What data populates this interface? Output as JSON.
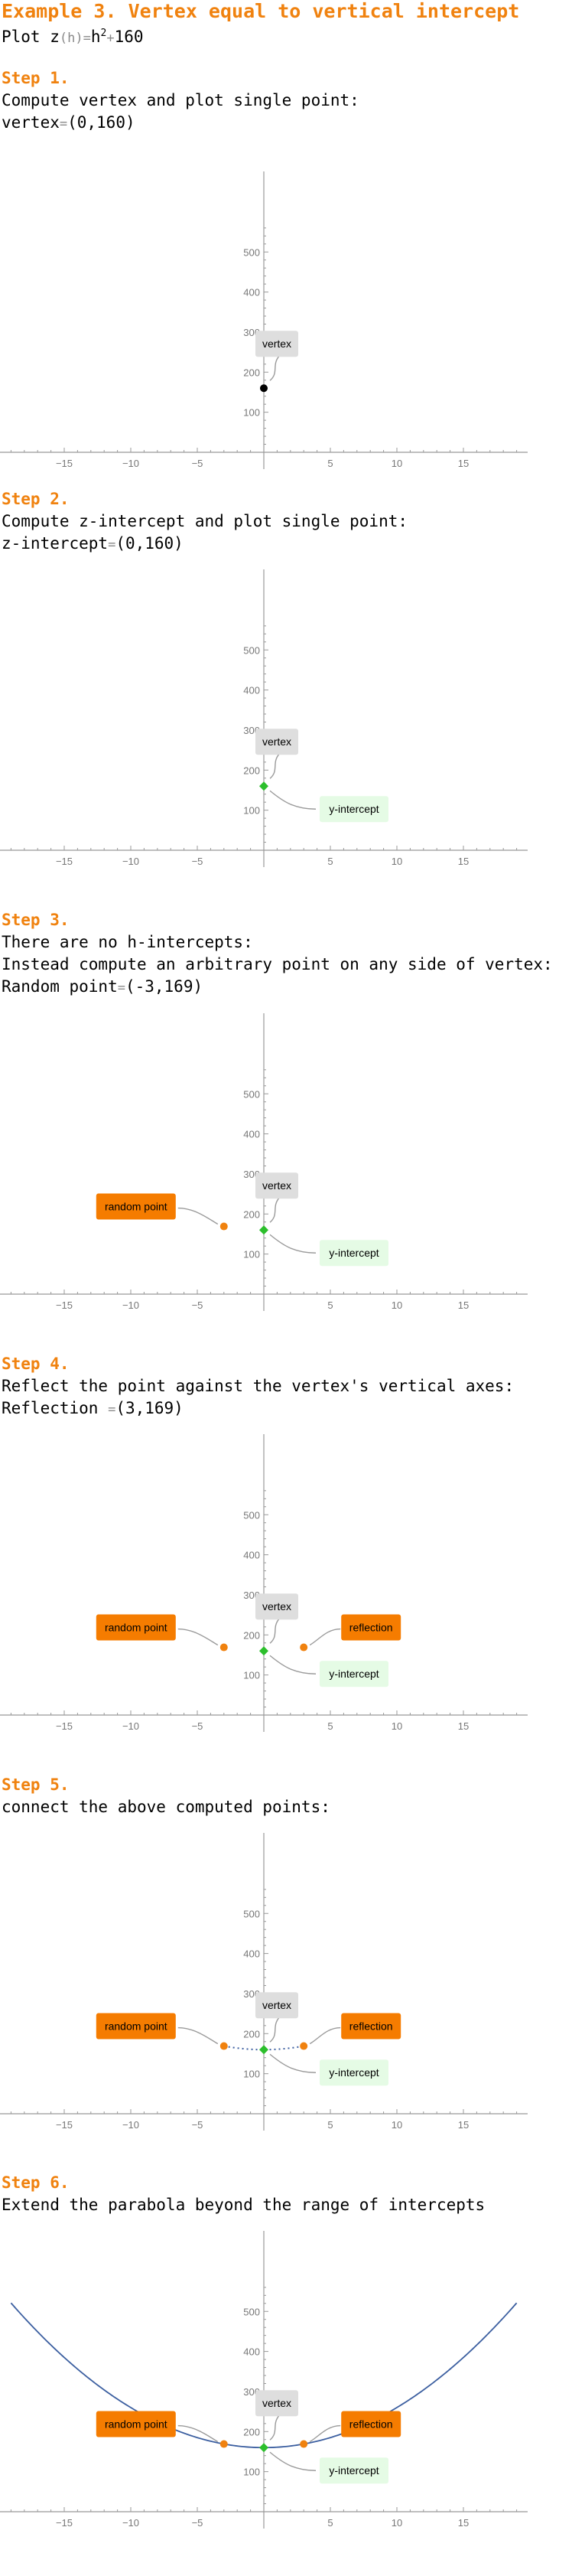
{
  "header": {
    "title": "Example 3. Vertex equal to vertical intercept",
    "plot_prefix": "Plot",
    "func_name": "z",
    "func_arg": "(h)",
    "func_eq": "=",
    "func_var": "h",
    "func_exp": "2",
    "func_plus": "+",
    "func_const": "160"
  },
  "steps": [
    {
      "title": "Step 1.",
      "lines": [
        {
          "text": "Compute vertex and plot single point:"
        },
        {
          "text": "vertex",
          "gray": "=",
          "value": "(0,160)"
        }
      ]
    },
    {
      "title": "Step 2.",
      "lines": [
        {
          "text": "Compute z-intercept and plot single point:"
        },
        {
          "text": "z-intercept",
          "gray": "=",
          "value": "(0,160)"
        }
      ]
    },
    {
      "title": "Step 3.",
      "lines": [
        {
          "text": "There are no h-intercepts:"
        },
        {
          "text": "Instead compute an arbitrary point on any side of vertex:"
        },
        {
          "text": "Random point",
          "gray": "=",
          "value": "(-3,169)"
        }
      ]
    },
    {
      "title": "Step 4.",
      "lines": [
        {
          "text": "Reflect the point against the vertex's vertical axes:"
        },
        {
          "text": "Reflection ",
          "gray": "=",
          "value": "(3,169)"
        }
      ]
    },
    {
      "title": "Step 5.",
      "lines": [
        {
          "text": "connect the above computed points:"
        }
      ]
    },
    {
      "title": "Step 6.",
      "lines": [
        {
          "text": "Extend the parabola beyond the range of intercepts"
        }
      ]
    }
  ],
  "colors": {
    "accent": "#f0820f",
    "vertex_point": "#000000",
    "intercept_point": "#2cbf2c",
    "random_point": "#f0820f",
    "curve": "#3c5fa0",
    "vertex_label_bg": "#dedede",
    "intercept_label_bg": "#e5fbe5",
    "random_label_bg": "#f57c00"
  },
  "chart_data": [
    {
      "type": "scatter",
      "xlim": [
        -19,
        19
      ],
      "ylim": [
        -30,
        570
      ],
      "x_ticks": [
        -15,
        -10,
        -5,
        5,
        10,
        15
      ],
      "y_ticks": [
        100,
        200,
        300,
        400,
        500
      ],
      "points": [
        {
          "x": 0,
          "y": 160,
          "kind": "vertex"
        }
      ],
      "labels": [
        {
          "text": "vertex",
          "target": "vertex"
        }
      ]
    },
    {
      "type": "scatter",
      "xlim": [
        -19,
        19
      ],
      "ylim": [
        -30,
        570
      ],
      "x_ticks": [
        -15,
        -10,
        -5,
        5,
        10,
        15
      ],
      "y_ticks": [
        100,
        200,
        300,
        400,
        500
      ],
      "points": [
        {
          "x": 0,
          "y": 160,
          "kind": "intercept"
        }
      ],
      "labels": [
        {
          "text": "vertex",
          "target": "vertex"
        },
        {
          "text": "y-intercept",
          "target": "intercept"
        }
      ]
    },
    {
      "type": "scatter",
      "xlim": [
        -19,
        19
      ],
      "ylim": [
        -30,
        570
      ],
      "x_ticks": [
        -15,
        -10,
        -5,
        5,
        10,
        15
      ],
      "y_ticks": [
        100,
        200,
        300,
        400,
        500
      ],
      "points": [
        {
          "x": 0,
          "y": 160,
          "kind": "intercept"
        },
        {
          "x": -3,
          "y": 169,
          "kind": "random"
        }
      ],
      "labels": [
        {
          "text": "vertex",
          "target": "vertex"
        },
        {
          "text": "y-intercept",
          "target": "intercept"
        },
        {
          "text": "random point",
          "target": "random"
        }
      ]
    },
    {
      "type": "scatter",
      "xlim": [
        -19,
        19
      ],
      "ylim": [
        -30,
        570
      ],
      "x_ticks": [
        -15,
        -10,
        -5,
        5,
        10,
        15
      ],
      "y_ticks": [
        100,
        200,
        300,
        400,
        500
      ],
      "points": [
        {
          "x": 0,
          "y": 160,
          "kind": "intercept"
        },
        {
          "x": -3,
          "y": 169,
          "kind": "random"
        },
        {
          "x": 3,
          "y": 169,
          "kind": "random"
        }
      ],
      "labels": [
        {
          "text": "vertex",
          "target": "vertex"
        },
        {
          "text": "y-intercept",
          "target": "intercept"
        },
        {
          "text": "random point",
          "target": "random"
        },
        {
          "text": "reflection",
          "target": "reflection"
        }
      ]
    },
    {
      "type": "line",
      "xlim": [
        -19,
        19
      ],
      "ylim": [
        -30,
        570
      ],
      "x_ticks": [
        -15,
        -10,
        -5,
        5,
        10,
        15
      ],
      "y_ticks": [
        100,
        200,
        300,
        400,
        500
      ],
      "points": [
        {
          "x": 0,
          "y": 160,
          "kind": "intercept"
        },
        {
          "x": -3,
          "y": 169,
          "kind": "random"
        },
        {
          "x": 3,
          "y": 169,
          "kind": "random"
        }
      ],
      "curve": {
        "a": 1,
        "c": 160,
        "from": -3,
        "to": 3,
        "style": "dotted"
      },
      "labels": [
        {
          "text": "vertex",
          "target": "vertex"
        },
        {
          "text": "y-intercept",
          "target": "intercept"
        },
        {
          "text": "random point",
          "target": "random"
        },
        {
          "text": "reflection",
          "target": "reflection"
        }
      ]
    },
    {
      "type": "line",
      "xlim": [
        -19,
        19
      ],
      "ylim": [
        -30,
        570
      ],
      "x_ticks": [
        -15,
        -10,
        -5,
        5,
        10,
        15
      ],
      "y_ticks": [
        100,
        200,
        300,
        400,
        500
      ],
      "points": [
        {
          "x": 0,
          "y": 160,
          "kind": "intercept"
        },
        {
          "x": -3,
          "y": 169,
          "kind": "random"
        },
        {
          "x": 3,
          "y": 169,
          "kind": "random"
        }
      ],
      "curve": {
        "a": 1,
        "c": 160,
        "from": -19,
        "to": 19,
        "style": "solid"
      },
      "labels": [
        {
          "text": "vertex",
          "target": "vertex"
        },
        {
          "text": "y-intercept",
          "target": "intercept"
        },
        {
          "text": "random point",
          "target": "random"
        },
        {
          "text": "reflection",
          "target": "reflection"
        }
      ]
    }
  ]
}
